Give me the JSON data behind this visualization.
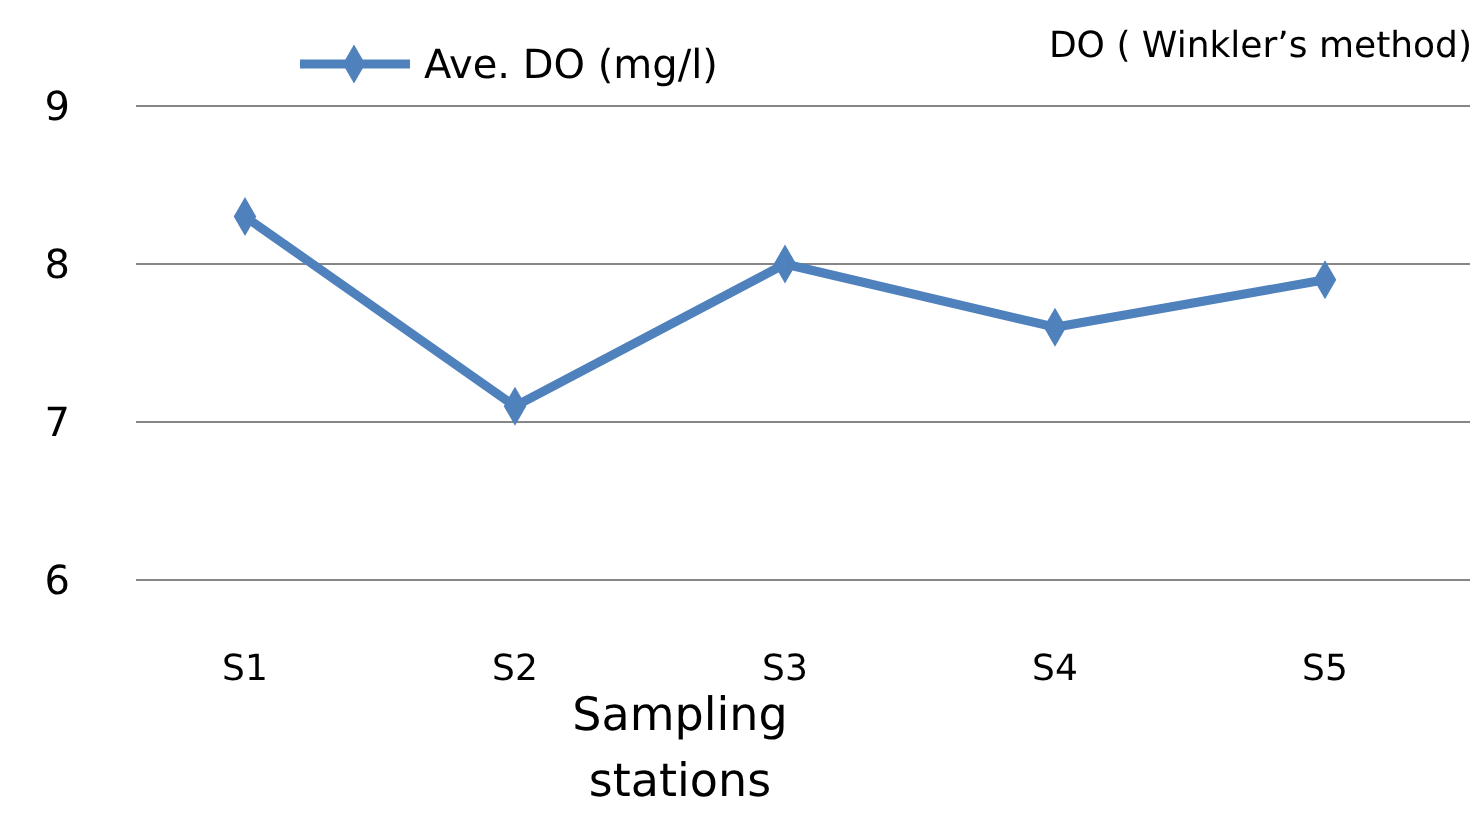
{
  "chart_data": {
    "type": "line",
    "title": "DO ( Winkler’s  method)",
    "xlabel": "Sampling stations",
    "categories": [
      "S1",
      "S2",
      "S3",
      "S4",
      "S5"
    ],
    "series": [
      {
        "name": "Ave. DO (mg/l)",
        "color": "#4f81bd",
        "values": [
          8.3,
          7.1,
          8.0,
          7.6,
          7.9
        ]
      }
    ],
    "ylim": [
      6,
      9
    ],
    "yticks": [
      6,
      7,
      8,
      9
    ],
    "grid": "y",
    "legend": "top",
    "marker": "diamond"
  }
}
